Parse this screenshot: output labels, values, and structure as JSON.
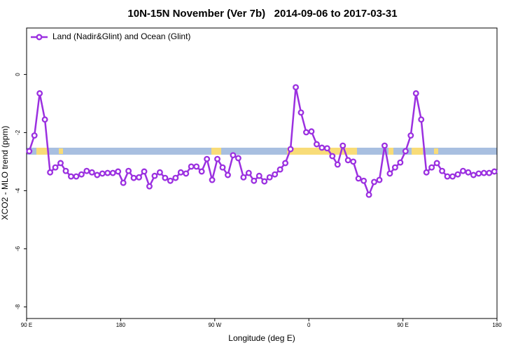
{
  "chart_data": {
    "type": "line",
    "title": "10N-15N November (Ver 7b)   2014-09-06 to 2017-03-31",
    "x_label": "Longitude (deg E)",
    "y_label": "XCO2 - MLO trend (ppm)",
    "legend": "topleft",
    "xlim": [
      90,
      540
    ],
    "xticks": [
      {
        "value": 90,
        "label": "90 E"
      },
      180,
      {
        "value": 270,
        "label": "90 W"
      },
      {
        "value": 360,
        "label": "0"
      },
      {
        "value": 450,
        "label": "90 E"
      },
      {
        "value": 540,
        "label": "180"
      }
    ],
    "ylim": [
      -8.4,
      1.6
    ],
    "yticks": [
      -8,
      -6,
      -4,
      -2,
      0
    ],
    "x": [
      92.5,
      97.5,
      102.5,
      107.5,
      112.5,
      117.5,
      122.5,
      127.5,
      132.5,
      137.5,
      142.5,
      147.5,
      152.5,
      157.5,
      162.5,
      167.5,
      172.5,
      177.5,
      182.5,
      187.5,
      192.5,
      197.5,
      202.5,
      207.5,
      212.5,
      217.5,
      222.5,
      227.5,
      232.5,
      237.5,
      242.5,
      247.5,
      252.5,
      257.5,
      262.5,
      267.5,
      272.5,
      277.5,
      282.5,
      287.5,
      292.5,
      297.5,
      302.5,
      307.5,
      312.5,
      317.5,
      322.5,
      327.5,
      332.5,
      337.5,
      342.5,
      347.5,
      352.5,
      357.5,
      362.5,
      367.5,
      372.5,
      377.5,
      382.5,
      387.5,
      392.5,
      397.5,
      402.5,
      407.5,
      412.5,
      417.5,
      422.5,
      427.5,
      432.5,
      437.5,
      442.5,
      447.5,
      452.5,
      457.5,
      462.5,
      467.5,
      472.5,
      477.5,
      482.5,
      487.5,
      492.5,
      497.5,
      502.5,
      507.5,
      512.5,
      517.5,
      522.5,
      527.5,
      532.5,
      537.5
    ],
    "series": [
      {
        "name": "Land (Nadir&Glint) and Ocean (Glint)",
        "color": "#9b30e0",
        "values": [
          -2.64,
          -2.1,
          -0.65,
          -1.55,
          -3.37,
          -3.2,
          -3.05,
          -3.32,
          -3.51,
          -3.51,
          -3.44,
          -3.32,
          -3.37,
          -3.46,
          -3.41,
          -3.39,
          -3.39,
          -3.34,
          -3.73,
          -3.32,
          -3.56,
          -3.54,
          -3.34,
          -3.85,
          -3.49,
          -3.37,
          -3.56,
          -3.66,
          -3.56,
          -3.37,
          -3.41,
          -3.17,
          -3.17,
          -3.34,
          -2.91,
          -3.63,
          -2.91,
          -3.2,
          -3.46,
          -2.78,
          -2.88,
          -3.54,
          -3.39,
          -3.66,
          -3.49,
          -3.68,
          -3.54,
          -3.44,
          -3.27,
          -3.05,
          -2.57,
          -0.44,
          -1.31,
          -1.99,
          -1.96,
          -2.4,
          -2.52,
          -2.54,
          -2.81,
          -3.1,
          -2.45,
          -2.95,
          -3.0,
          -3.58,
          -3.66,
          -4.14,
          -3.7,
          -3.63,
          -2.45,
          -3.41,
          -3.2,
          -3.03,
          -2.64,
          -2.1,
          -0.65,
          -1.55,
          -3.37,
          -3.2,
          -3.05,
          -3.32,
          -3.51,
          -3.51,
          -3.44,
          -3.32,
          -3.37,
          -3.46,
          -3.41,
          -3.39,
          -3.39,
          -3.34
        ]
      }
    ]
  }
}
